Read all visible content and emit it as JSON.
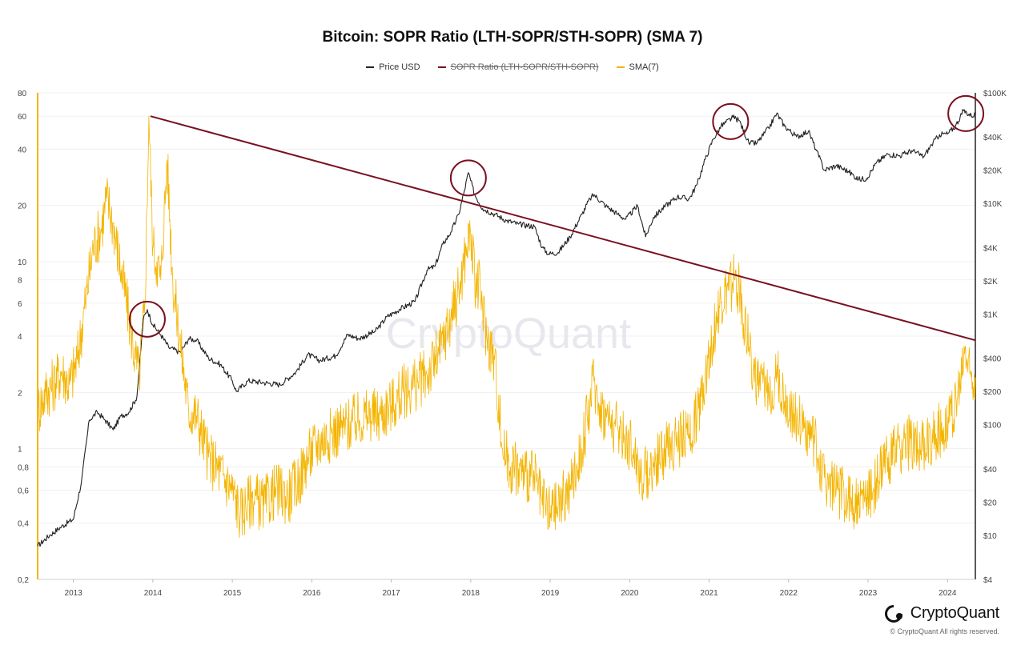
{
  "chart_data": {
    "type": "line",
    "title": "Bitcoin: SOPR Ratio (LTH-SOPR/STH-SOPR) (SMA 7)",
    "legend": [
      {
        "name": "Price USD",
        "color": "#222222",
        "hidden": false
      },
      {
        "name": "SOPR Ratio (LTH-SOPR/STH-SOPR)",
        "color": "#7a1020",
        "hidden": true
      },
      {
        "name": "SMA(7)",
        "color": "#f4b400",
        "hidden": false
      }
    ],
    "x_ticks": [
      "2013",
      "2014",
      "2015",
      "2016",
      "2017",
      "2018",
      "2019",
      "2020",
      "2021",
      "2022",
      "2023",
      "2024"
    ],
    "x_range": [
      2012.55,
      2024.35
    ],
    "left_axis": {
      "scale": "log",
      "range": [
        0.2,
        80
      ],
      "ticks": [
        {
          "v": 80,
          "label": "80"
        },
        {
          "v": 60,
          "label": "60"
        },
        {
          "v": 40,
          "label": "40"
        },
        {
          "v": 20,
          "label": "20"
        },
        {
          "v": 10,
          "label": "10"
        },
        {
          "v": 8,
          "label": "8"
        },
        {
          "v": 6,
          "label": "6"
        },
        {
          "v": 4,
          "label": "4"
        },
        {
          "v": 2,
          "label": "2"
        },
        {
          "v": 1,
          "label": "1"
        },
        {
          "v": 0.8,
          "label": "0,8"
        },
        {
          "v": 0.6,
          "label": "0,6"
        },
        {
          "v": 0.4,
          "label": "0,4"
        },
        {
          "v": 0.2,
          "label": "0,2"
        }
      ]
    },
    "right_axis": {
      "scale": "log",
      "range": [
        4,
        100000
      ],
      "ticks": [
        {
          "v": 100000,
          "label": "$100K"
        },
        {
          "v": 40000,
          "label": "$40K"
        },
        {
          "v": 20000,
          "label": "$20K"
        },
        {
          "v": 10000,
          "label": "$10K"
        },
        {
          "v": 4000,
          "label": "$4K"
        },
        {
          "v": 2000,
          "label": "$2K"
        },
        {
          "v": 1000,
          "label": "$1K"
        },
        {
          "v": 400,
          "label": "$400"
        },
        {
          "v": 200,
          "label": "$200"
        },
        {
          "v": 100,
          "label": "$100"
        },
        {
          "v": 40,
          "label": "$40"
        },
        {
          "v": 20,
          "label": "$20"
        },
        {
          "v": 10,
          "label": "$10"
        },
        {
          "v": 4,
          "label": "$4"
        }
      ]
    },
    "series": [
      {
        "name": "Price USD",
        "axis": "right",
        "color": "#222222",
        "points": [
          [
            2012.55,
            8
          ],
          [
            2012.7,
            10
          ],
          [
            2012.85,
            12
          ],
          [
            2013.0,
            14
          ],
          [
            2013.1,
            30
          ],
          [
            2013.2,
            110
          ],
          [
            2013.3,
            130
          ],
          [
            2013.4,
            110
          ],
          [
            2013.5,
            90
          ],
          [
            2013.6,
            120
          ],
          [
            2013.7,
            130
          ],
          [
            2013.8,
            180
          ],
          [
            2013.88,
            900
          ],
          [
            2013.93,
            1100
          ],
          [
            2014.0,
            800
          ],
          [
            2014.1,
            650
          ],
          [
            2014.2,
            500
          ],
          [
            2014.35,
            450
          ],
          [
            2014.45,
            600
          ],
          [
            2014.55,
            580
          ],
          [
            2014.7,
            400
          ],
          [
            2014.85,
            350
          ],
          [
            2015.0,
            250
          ],
          [
            2015.05,
            200
          ],
          [
            2015.2,
            250
          ],
          [
            2015.4,
            240
          ],
          [
            2015.6,
            230
          ],
          [
            2015.8,
            300
          ],
          [
            2015.95,
            430
          ],
          [
            2016.1,
            380
          ],
          [
            2016.3,
            420
          ],
          [
            2016.45,
            650
          ],
          [
            2016.6,
            600
          ],
          [
            2016.8,
            700
          ],
          [
            2016.95,
            950
          ],
          [
            2017.1,
            1100
          ],
          [
            2017.3,
            1300
          ],
          [
            2017.45,
            2500
          ],
          [
            2017.55,
            2700
          ],
          [
            2017.65,
            4300
          ],
          [
            2017.75,
            5500
          ],
          [
            2017.85,
            8000
          ],
          [
            2017.92,
            13000
          ],
          [
            2017.97,
            19000
          ],
          [
            2018.05,
            12000
          ],
          [
            2018.15,
            9000
          ],
          [
            2018.3,
            8000
          ],
          [
            2018.45,
            7000
          ],
          [
            2018.6,
            6500
          ],
          [
            2018.8,
            6200
          ],
          [
            2018.9,
            4000
          ],
          [
            2018.98,
            3500
          ],
          [
            2019.1,
            3600
          ],
          [
            2019.25,
            5000
          ],
          [
            2019.4,
            8000
          ],
          [
            2019.5,
            11000
          ],
          [
            2019.55,
            12000
          ],
          [
            2019.7,
            9500
          ],
          [
            2019.85,
            8000
          ],
          [
            2019.95,
            7200
          ],
          [
            2020.1,
            9500
          ],
          [
            2020.2,
            5000
          ],
          [
            2020.3,
            7500
          ],
          [
            2020.45,
            9500
          ],
          [
            2020.6,
            11500
          ],
          [
            2020.75,
            11000
          ],
          [
            2020.85,
            15000
          ],
          [
            2020.95,
            25000
          ],
          [
            2021.05,
            38000
          ],
          [
            2021.15,
            50000
          ],
          [
            2021.3,
            60000
          ],
          [
            2021.38,
            56000
          ],
          [
            2021.5,
            35000
          ],
          [
            2021.6,
            35000
          ],
          [
            2021.75,
            48000
          ],
          [
            2021.85,
            65000
          ],
          [
            2021.95,
            50000
          ],
          [
            2022.1,
            40000
          ],
          [
            2022.25,
            45000
          ],
          [
            2022.35,
            30000
          ],
          [
            2022.45,
            20000
          ],
          [
            2022.6,
            22000
          ],
          [
            2022.75,
            19500
          ],
          [
            2022.88,
            16500
          ],
          [
            2022.98,
            16800
          ],
          [
            2023.1,
            23000
          ],
          [
            2023.25,
            28000
          ],
          [
            2023.4,
            27000
          ],
          [
            2023.55,
            30000
          ],
          [
            2023.7,
            26500
          ],
          [
            2023.8,
            34000
          ],
          [
            2023.9,
            42000
          ],
          [
            2024.0,
            42500
          ],
          [
            2024.1,
            50000
          ],
          [
            2024.2,
            69000
          ],
          [
            2024.3,
            62000
          ],
          [
            2024.35,
            64000
          ]
        ]
      },
      {
        "name": "SMA(7)",
        "axis": "left",
        "color": "#f4b400",
        "points": [
          [
            2012.55,
            1.6
          ],
          [
            2012.65,
            2.0
          ],
          [
            2012.75,
            2.2
          ],
          [
            2012.85,
            2.6
          ],
          [
            2012.95,
            2.2
          ],
          [
            2013.05,
            3.0
          ],
          [
            2013.15,
            6.0
          ],
          [
            2013.25,
            12.0
          ],
          [
            2013.35,
            15.0
          ],
          [
            2013.42,
            22.0
          ],
          [
            2013.5,
            16.0
          ],
          [
            2013.6,
            9.0
          ],
          [
            2013.7,
            5.0
          ],
          [
            2013.78,
            3.0
          ],
          [
            2013.83,
            2.5
          ],
          [
            2013.9,
            6.0
          ],
          [
            2013.95,
            60.0
          ],
          [
            2014.0,
            12.0
          ],
          [
            2014.05,
            10.0
          ],
          [
            2014.1,
            8.0
          ],
          [
            2014.18,
            35.0
          ],
          [
            2014.25,
            8.0
          ],
          [
            2014.35,
            3.5
          ],
          [
            2014.45,
            1.6
          ],
          [
            2014.55,
            1.5
          ],
          [
            2014.7,
            0.9
          ],
          [
            2014.85,
            0.75
          ],
          [
            2015.0,
            0.6
          ],
          [
            2015.1,
            0.45
          ],
          [
            2015.25,
            0.55
          ],
          [
            2015.4,
            0.5
          ],
          [
            2015.55,
            0.6
          ],
          [
            2015.7,
            0.55
          ],
          [
            2015.85,
            0.7
          ],
          [
            2015.95,
            0.9
          ],
          [
            2016.1,
            1.1
          ],
          [
            2016.25,
            1.2
          ],
          [
            2016.4,
            1.3
          ],
          [
            2016.55,
            1.4
          ],
          [
            2016.7,
            1.5
          ],
          [
            2016.85,
            1.5
          ],
          [
            2017.0,
            1.7
          ],
          [
            2017.15,
            2.0
          ],
          [
            2017.3,
            2.2
          ],
          [
            2017.45,
            2.5
          ],
          [
            2017.6,
            3.2
          ],
          [
            2017.75,
            5.0
          ],
          [
            2017.88,
            8.0
          ],
          [
            2017.95,
            12.0
          ],
          [
            2018.0,
            14.0
          ],
          [
            2018.05,
            8.0
          ],
          [
            2018.12,
            7.0
          ],
          [
            2018.2,
            4.0
          ],
          [
            2018.3,
            3.0
          ],
          [
            2018.4,
            1.0
          ],
          [
            2018.5,
            0.8
          ],
          [
            2018.65,
            0.75
          ],
          [
            2018.8,
            0.7
          ],
          [
            2018.9,
            0.5
          ],
          [
            2019.0,
            0.45
          ],
          [
            2019.1,
            0.5
          ],
          [
            2019.25,
            0.6
          ],
          [
            2019.4,
            1.0
          ],
          [
            2019.5,
            1.8
          ],
          [
            2019.55,
            2.3
          ],
          [
            2019.65,
            1.6
          ],
          [
            2019.75,
            1.4
          ],
          [
            2019.9,
            1.2
          ],
          [
            2020.05,
            1.0
          ],
          [
            2020.15,
            0.7
          ],
          [
            2020.3,
            0.8
          ],
          [
            2020.45,
            1.0
          ],
          [
            2020.6,
            1.1
          ],
          [
            2020.75,
            1.2
          ],
          [
            2020.85,
            1.5
          ],
          [
            2020.95,
            2.5
          ],
          [
            2021.05,
            4.0
          ],
          [
            2021.15,
            6.0
          ],
          [
            2021.25,
            7.0
          ],
          [
            2021.32,
            8.0
          ],
          [
            2021.38,
            7.0
          ],
          [
            2021.5,
            3.5
          ],
          [
            2021.6,
            2.2
          ],
          [
            2021.75,
            2.0
          ],
          [
            2021.85,
            2.5
          ],
          [
            2021.95,
            1.8
          ],
          [
            2022.05,
            1.6
          ],
          [
            2022.2,
            1.3
          ],
          [
            2022.35,
            1.0
          ],
          [
            2022.45,
            0.7
          ],
          [
            2022.6,
            0.6
          ],
          [
            2022.75,
            0.55
          ],
          [
            2022.88,
            0.5
          ],
          [
            2022.98,
            0.55
          ],
          [
            2023.1,
            0.65
          ],
          [
            2023.25,
            0.9
          ],
          [
            2023.4,
            1.0
          ],
          [
            2023.55,
            1.1
          ],
          [
            2023.7,
            1.0
          ],
          [
            2023.85,
            1.2
          ],
          [
            2023.95,
            1.3
          ],
          [
            2024.05,
            1.5
          ],
          [
            2024.15,
            2.0
          ],
          [
            2024.22,
            3.5
          ],
          [
            2024.28,
            2.5
          ],
          [
            2024.35,
            2.4
          ]
        ]
      }
    ],
    "annotations": {
      "trendline": {
        "axis": "left",
        "from": [
          2013.97,
          60
        ],
        "to": [
          2024.35,
          3.8
        ],
        "color": "#7a1020"
      },
      "circles": [
        {
          "x": 2013.93,
          "axis": "right",
          "y": 900
        },
        {
          "x": 2017.97,
          "axis": "right",
          "y": 17000
        },
        {
          "x": 2021.27,
          "axis": "right",
          "y": 55000
        },
        {
          "x": 2024.23,
          "axis": "right",
          "y": 65000
        }
      ],
      "watermark": "CryptoQuant"
    }
  },
  "brand": {
    "name": "CryptoQuant",
    "copyright": "© CryptoQuant All rights reserved."
  }
}
